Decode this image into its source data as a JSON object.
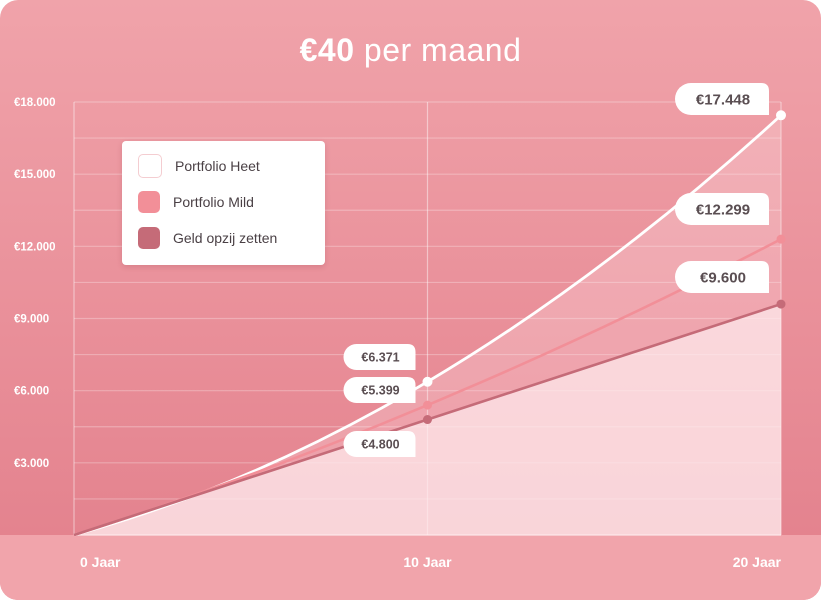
{
  "title": {
    "amount": "€40",
    "rest": "per maand"
  },
  "legend": [
    {
      "label": "Portfolio Heet",
      "color": "#ffffff",
      "border": "#f4cdd1"
    },
    {
      "label": "Portfolio Mild",
      "color": "#f28f98"
    },
    {
      "label": "Geld opzij zetten",
      "color": "#c56b78"
    }
  ],
  "colors": {
    "background_top": "#f0a3aa",
    "background_bottom": "#e27f8b",
    "heet": "#ffffff",
    "mild": "#f28f98",
    "geld": "#c56b78",
    "label_text": "#5a4e52"
  },
  "chart_data": {
    "type": "line",
    "title": "€40 per maand",
    "x": [
      0,
      10,
      20
    ],
    "x_tick_labels": [
      "0 Jaar",
      "10 Jaar",
      "20 Jaar"
    ],
    "y_ticks": [
      3000,
      6000,
      9000,
      12000,
      15000,
      18000
    ],
    "y_tick_labels": [
      "€3.000",
      "€6.000",
      "€9.000",
      "€12.000",
      "€15.000",
      "€18.000"
    ],
    "ylim": [
      0,
      18000
    ],
    "grid": true,
    "legend_position": "top-left",
    "series": [
      {
        "name": "Portfolio Heet",
        "values": [
          0,
          6371,
          17448
        ],
        "labels": [
          "",
          "€6.371",
          "€17.448"
        ]
      },
      {
        "name": "Portfolio Mild",
        "values": [
          0,
          5399,
          12299
        ],
        "labels": [
          "",
          "€5.399",
          "€12.299"
        ]
      },
      {
        "name": "Geld opzij zetten",
        "values": [
          0,
          4800,
          9600
        ],
        "labels": [
          "",
          "€4.800",
          "€9.600"
        ]
      }
    ]
  }
}
